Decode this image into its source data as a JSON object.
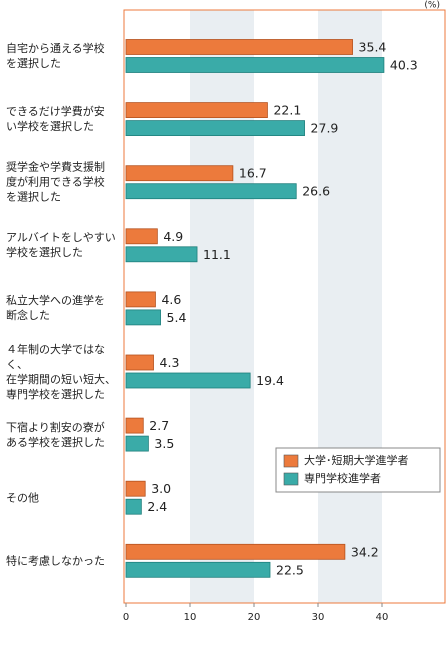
{
  "chart_data": {
    "type": "hbar",
    "unit": "(%)",
    "categories": [
      "自宅から通える学校\nを選択した",
      "できるだけ学費が安\nい学校を選択した",
      "奨学金や学費支援制\n度が利用できる学校\nを選択した",
      "アルバイトをしやすい\n学校を選択した",
      "私立大学への進学を\n断念した",
      "４年制の大学ではなく、\n在学期間の短い短大、\n専門学校を選択した",
      "下宿より割安の寮が\nある学校を選択した",
      "その他",
      "特に考慮しなかった"
    ],
    "series": [
      {
        "name": "大学･短期大学進学者",
        "color": "#ec7a3c",
        "values": [
          35.4,
          22.1,
          16.7,
          4.9,
          4.6,
          4.3,
          2.7,
          3.0,
          34.2
        ],
        "value_labels": [
          "35.4",
          "22.1",
          "16.7",
          "4.9",
          "4.6",
          "4.3",
          "2.7",
          "3.0",
          "34.2"
        ]
      },
      {
        "name": "専門学校進学者",
        "color": "#3aaba8",
        "values": [
          40.3,
          27.9,
          26.6,
          11.1,
          5.4,
          19.4,
          3.5,
          2.4,
          22.5
        ],
        "value_labels": [
          "40.3",
          "27.9",
          "26.6",
          "11.1",
          "5.4",
          "19.4",
          "3.5",
          "2.4",
          "22.5"
        ]
      }
    ],
    "xlim": [
      0,
      50
    ],
    "xticks": [
      0,
      10,
      20,
      30,
      40
    ],
    "bands": [
      [
        10,
        20
      ],
      [
        30,
        40
      ]
    ],
    "legend": "lower-right"
  }
}
